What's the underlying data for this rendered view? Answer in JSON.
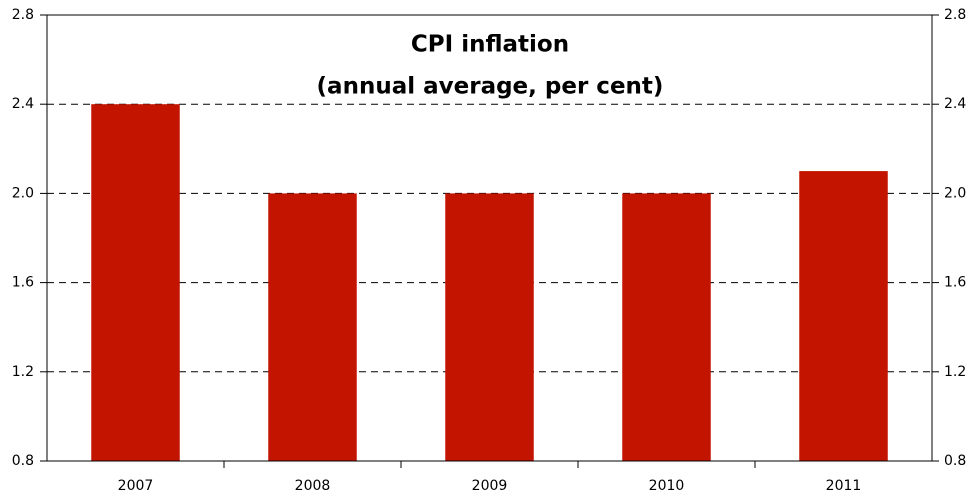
{
  "chart_data": {
    "type": "bar",
    "title": "CPI inflation",
    "subtitle": "(annual average, per cent)",
    "categories": [
      "2007",
      "2008",
      "2009",
      "2010",
      "2011"
    ],
    "values": [
      2.4,
      2.0,
      2.0,
      2.0,
      2.1
    ],
    "color": "#c31400",
    "ylim": [
      0.8,
      2.8
    ],
    "yticks": [
      0.8,
      1.2,
      1.6,
      {
        "value": 2.0,
        "label": "2.0"
      },
      2.4,
      2.8
    ],
    "y2lim": [
      0.8,
      2.8
    ],
    "y2ticks": [
      0.8,
      1.2,
      1.6,
      {
        "value": 2.0,
        "label": "2.0"
      },
      2.4,
      2.8
    ],
    "grid": true
  }
}
